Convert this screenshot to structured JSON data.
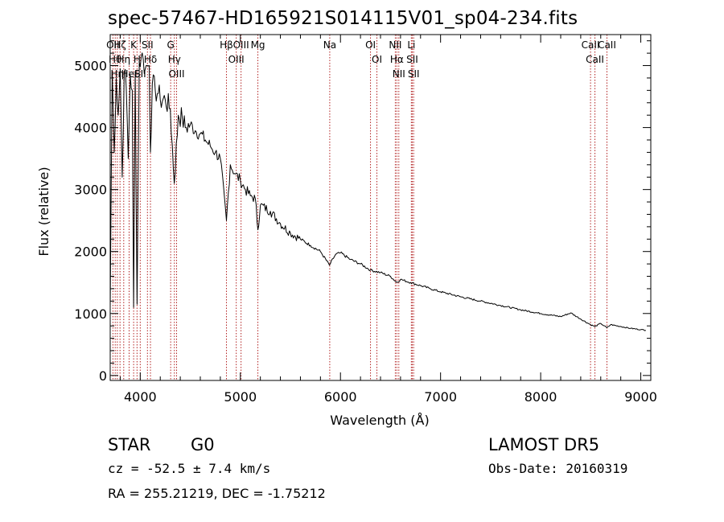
{
  "header": {
    "title": "spec-57467-HD165921S014115V01_sp04-234.fits"
  },
  "info": {
    "class_label": "STAR",
    "subclass": "G0",
    "survey": "LAMOST DR5",
    "cz": "cz = -52.5 ± 7.4 km/s",
    "obs_date": "Obs-Date: 20160319",
    "coords": "RA = 255.21219, DEC =  -1.75212"
  },
  "colors": {
    "line_marker": "#b22222",
    "spectrum": "#000000",
    "axes": "#000000"
  },
  "chart_data": {
    "type": "line",
    "title": "spec-57467-HD165921S014115V01_sp04-234.fits",
    "xlabel": "Wavelength (Å)",
    "ylabel": "Flux (relative)",
    "xlim": [
      3700,
      9100
    ],
    "ylim": [
      -80,
      5500
    ],
    "x_ticks": [
      4000,
      5000,
      6000,
      7000,
      8000,
      9000
    ],
    "y_ticks": [
      0,
      1000,
      2000,
      3000,
      4000,
      5000
    ],
    "grid": false,
    "series": [
      {
        "x": [
          3700,
          3720,
          3740,
          3760,
          3780,
          3800,
          3820,
          3840,
          3860,
          3880,
          3900,
          3920,
          3934,
          3950,
          3968,
          3990,
          4010,
          4030,
          4050,
          4070,
          4090,
          4102,
          4120,
          4150,
          4180,
          4200,
          4250,
          4300,
          4340,
          4380,
          4420,
          4450,
          4500,
          4550,
          4600,
          4650,
          4700,
          4750,
          4800,
          4861,
          4900,
          4950,
          5000,
          5050,
          5100,
          5150,
          5175,
          5200,
          5300,
          5400,
          5500,
          5600,
          5700,
          5800,
          5890,
          5950,
          6000,
          6100,
          6200,
          6300,
          6400,
          6500,
          6563,
          6600,
          6700,
          6800,
          6900,
          7000,
          7200,
          7400,
          7600,
          7800,
          8000,
          8200,
          8300,
          8400,
          8498,
          8542,
          8600,
          8662,
          8700,
          8800,
          8900,
          9000,
          9050
        ],
        "y": [
          1100,
          4900,
          3600,
          4800,
          4200,
          4950,
          3200,
          4900,
          4650,
          3500,
          4850,
          4600,
          1100,
          4900,
          1150,
          5050,
          5150,
          5100,
          4950,
          5000,
          5000,
          3600,
          4700,
          4600,
          4550,
          4450,
          4450,
          4300,
          3100,
          4200,
          4150,
          4000,
          4050,
          3950,
          3900,
          3800,
          3700,
          3600,
          3500,
          2500,
          3400,
          3250,
          3150,
          3000,
          2900,
          2850,
          2350,
          2750,
          2650,
          2450,
          2300,
          2200,
          2100,
          2000,
          1780,
          1950,
          1980,
          1870,
          1800,
          1700,
          1660,
          1600,
          1500,
          1550,
          1500,
          1450,
          1400,
          1350,
          1270,
          1200,
          1130,
          1060,
          1000,
          950,
          1010,
          910,
          820,
          790,
          840,
          770,
          820,
          790,
          760,
          740,
          730
        ]
      }
    ],
    "line_markers": [
      {
        "wl": 3727,
        "label": "OII"
      },
      {
        "wl": 3750,
        "label": "Hθ"
      },
      {
        "wl": 3771,
        "label": "Hη"
      },
      {
        "wl": 3798,
        "label": "Hζ"
      },
      {
        "wl": 3835,
        "label": "Hη"
      },
      {
        "wl": 3889,
        "label": "HeI"
      },
      {
        "wl": 3934,
        "label": "K"
      },
      {
        "wl": 3968,
        "label": "H"
      },
      {
        "wl": 4000,
        "label": "SII"
      },
      {
        "wl": 4072,
        "label": "SII"
      },
      {
        "wl": 4102,
        "label": "Hδ"
      },
      {
        "wl": 4304,
        "label": "G"
      },
      {
        "wl": 4341,
        "label": "Hγ"
      },
      {
        "wl": 4363,
        "label": "OIII"
      },
      {
        "wl": 4861,
        "label": "Hβ"
      },
      {
        "wl": 4959,
        "label": "OIII"
      },
      {
        "wl": 5007,
        "label": "OIII"
      },
      {
        "wl": 5175,
        "label": "Mg"
      },
      {
        "wl": 5893,
        "label": "Na"
      },
      {
        "wl": 6300,
        "label": "OI"
      },
      {
        "wl": 6364,
        "label": "OI"
      },
      {
        "wl": 6548,
        "label": "NII"
      },
      {
        "wl": 6563,
        "label": "Hα"
      },
      {
        "wl": 6583,
        "label": "NII"
      },
      {
        "wl": 6708,
        "label": "Li"
      },
      {
        "wl": 6717,
        "label": "SII"
      },
      {
        "wl": 6731,
        "label": "SII"
      },
      {
        "wl": 8498,
        "label": "CaII"
      },
      {
        "wl": 8542,
        "label": "CaII"
      },
      {
        "wl": 8662,
        "label": "CaII"
      }
    ]
  }
}
